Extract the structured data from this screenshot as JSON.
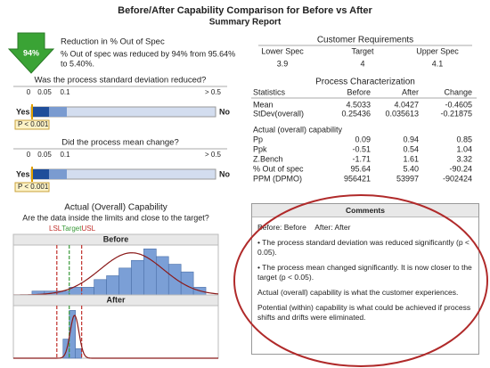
{
  "header": {
    "title": "Before/After Capability Comparison for Before vs After",
    "subtitle": "Summary Report"
  },
  "reduction": {
    "badge": "94%",
    "title": "Reduction in % Out of Spec",
    "lines": [
      "% Out of spec was reduced by 94% from 95.64%",
      "to 5.40%."
    ]
  },
  "tests": [
    {
      "question": "Was the process standard deviation reduced?",
      "scale": [
        "0",
        "0.05",
        "0.1",
        "> 0.5"
      ],
      "yes": "Yes",
      "no": "No",
      "p": "P < 0.001"
    },
    {
      "question": "Did the process mean change?",
      "scale": [
        "0",
        "0.05",
        "0.1",
        "> 0.5"
      ],
      "yes": "Yes",
      "no": "No",
      "p": "P < 0.001"
    }
  ],
  "capability": {
    "title": "Actual (Overall) Capability",
    "subtitle": "Are the data inside the limits and close to the target?",
    "legend": [
      "LSL",
      "Target",
      "USL"
    ],
    "xlim": [
      3.55,
      5.2
    ],
    "panels": [
      {
        "label": "Before",
        "bins": [
          3.7,
          3.8,
          3.9,
          4.0,
          4.1,
          4.2,
          4.3,
          4.4,
          4.5,
          4.6,
          4.7,
          4.8,
          4.9,
          5.0,
          5.1
        ],
        "counts": [
          1,
          1,
          1,
          2,
          2,
          4,
          5,
          7,
          9,
          12,
          10,
          8,
          6,
          2
        ],
        "ylim": [
          0,
          13
        ],
        "color": "#7b9fd6"
      },
      {
        "label": "After",
        "bins": [
          3.95,
          4.0,
          4.05,
          4.1
        ],
        "counts": [
          8,
          20,
          4
        ],
        "ylim": [
          0,
          22
        ],
        "color": "#7b9fd6"
      }
    ]
  },
  "requirements": {
    "title": "Customer Requirements",
    "columns": [
      "Lower Spec",
      "Target",
      "Upper Spec"
    ],
    "values": [
      3.9,
      4,
      4.1
    ]
  },
  "characterization": {
    "title": "Process Characterization",
    "columns": [
      "Statistics",
      "Before",
      "After",
      "Change"
    ],
    "rows": [
      [
        "Mean",
        "4.5033",
        "4.0427",
        "-0.4605"
      ],
      [
        "StDev(overall)",
        "0.25436",
        "0.035613",
        "-0.21875"
      ]
    ],
    "section": "Actual (overall) capability",
    "capability_rows": [
      [
        "Pp",
        "0.09",
        "0.94",
        "0.85"
      ],
      [
        "Ppk",
        "-0.51",
        "0.54",
        "1.04"
      ],
      [
        "Z.Bench",
        "-1.71",
        "1.61",
        "3.32"
      ],
      [
        "% Out of spec",
        "95.64",
        "5.40",
        "-90.24"
      ],
      [
        "PPM (DPMO)",
        "956421",
        "53997",
        "-902424"
      ]
    ]
  },
  "comments": {
    "title": "Comments",
    "groups": [
      "Before: Before",
      "After: After"
    ],
    "bullets": [
      "• The process standard deviation was reduced significantly (p < 0.05).",
      "• The process mean changed significantly. It is now closer to the target (p < 0.05)."
    ],
    "paragraphs": [
      "Actual (overall) capability is what the customer experiences.",
      "Potential (within) capability is what could be achieved if process shifts and drifts were eliminated."
    ]
  }
}
